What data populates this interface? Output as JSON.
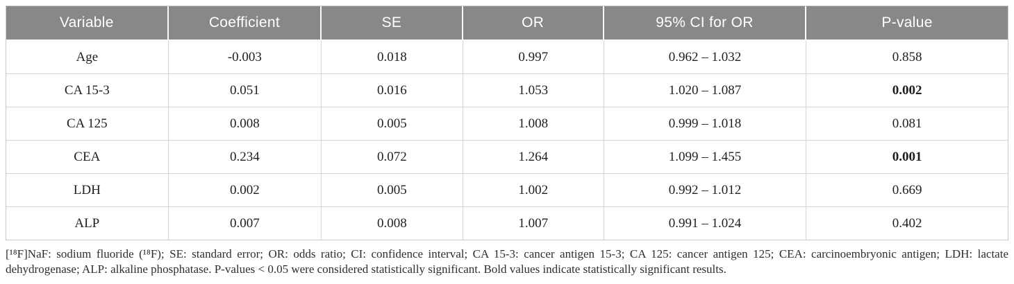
{
  "table": {
    "columns": {
      "variable": "Variable",
      "coefficient": "Coefficient",
      "se": "SE",
      "or": "OR",
      "ci": "95% CI for OR",
      "p": "P-value"
    },
    "rows": [
      {
        "variable": "Age",
        "coefficient": "-0.003",
        "se": "0.018",
        "or": "0.997",
        "ci": "0.962 – 1.032",
        "p": "0.858",
        "p_bold": false
      },
      {
        "variable": "CA 15-3",
        "coefficient": "0.051",
        "se": "0.016",
        "or": "1.053",
        "ci": "1.020 – 1.087",
        "p": "0.002",
        "p_bold": true
      },
      {
        "variable": "CA 125",
        "coefficient": "0.008",
        "se": "0.005",
        "or": "1.008",
        "ci": "0.999 – 1.018",
        "p": "0.081",
        "p_bold": false
      },
      {
        "variable": "CEA",
        "coefficient": "0.234",
        "se": "0.072",
        "or": "1.264",
        "ci": "1.099 – 1.455",
        "p": "0.001",
        "p_bold": true
      },
      {
        "variable": "LDH",
        "coefficient": "0.002",
        "se": "0.005",
        "or": "1.002",
        "ci": "0.992 – 1.012",
        "p": "0.669",
        "p_bold": false
      },
      {
        "variable": "ALP",
        "coefficient": "0.007",
        "se": "0.008",
        "or": "1.007",
        "ci": "0.991 – 1.024",
        "p": "0.402",
        "p_bold": false
      }
    ]
  },
  "footnote": {
    "text": "[¹⁸F]NaF: sodium fluoride (¹⁸F); SE: standard error; OR: odds ratio; CI: confidence interval; CA 15-3: cancer antigen 15-3; CA 125: cancer antigen 125; CEA: carcinoembryonic antigen; LDH: lactate dehydrogenase; ALP: alkaline phosphatase. P-values < 0.05 were considered statistically significant. Bold values indicate statistically significant results."
  },
  "colors": {
    "header_bg": "#868889",
    "header_text": "#ffffff",
    "cell_border": "#d4d6d7",
    "outer_border": "#c7c9ca",
    "body_text": "#1f1f1f"
  }
}
